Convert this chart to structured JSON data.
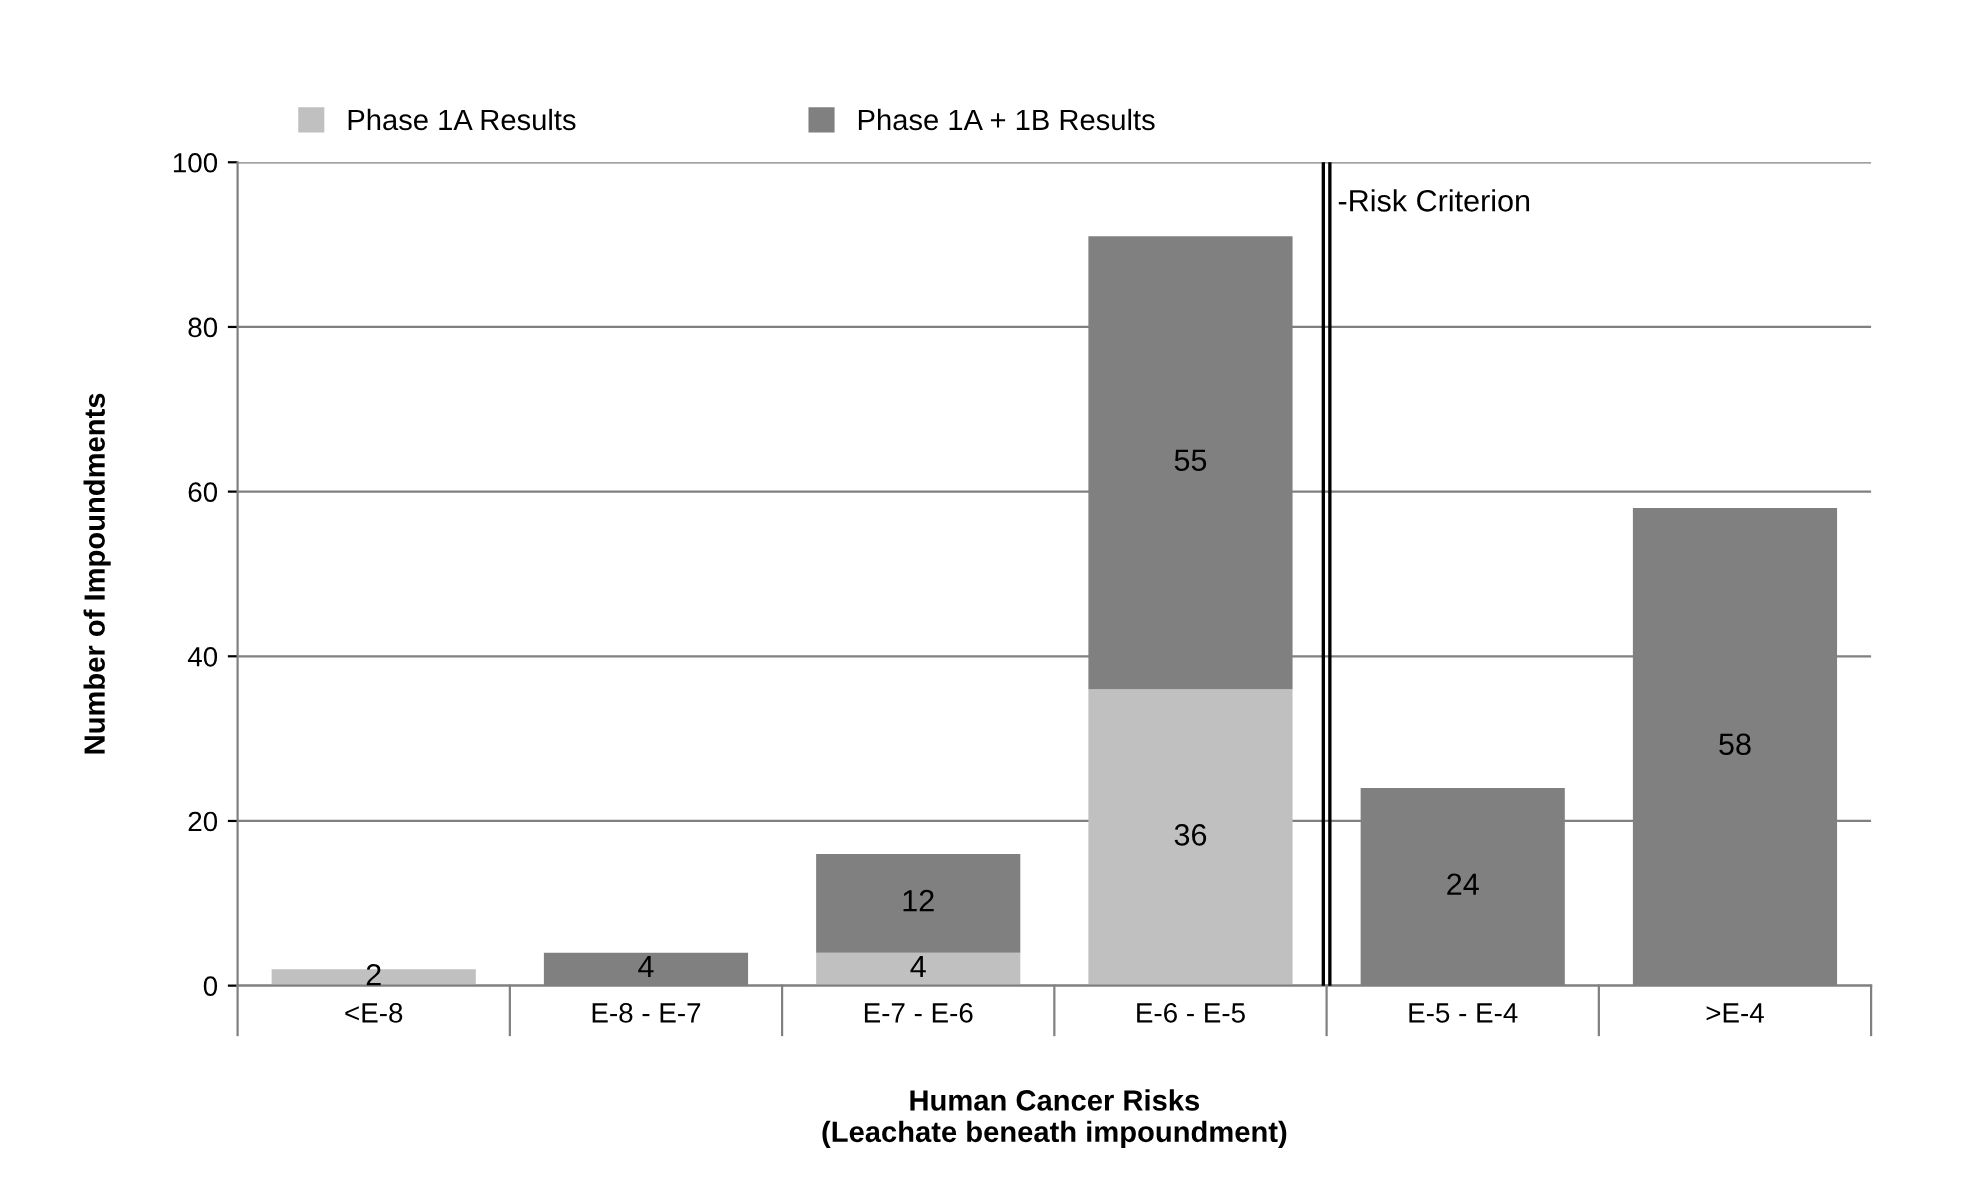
{
  "chart_data": {
    "type": "bar",
    "stacked": true,
    "xlabel": "Human Cancer Risks\n(Leachate beneath impoundment)",
    "ylabel": "Number of Impoundments",
    "categories": [
      "<E-8",
      "E-8 - E-7",
      "E-7 - E-6",
      "E-6 - E-5",
      "E-5 - E-4",
      ">E-4"
    ],
    "series": [
      {
        "name": "Phase 1A Results",
        "color": "#c0c0c0",
        "values": [
          2,
          null,
          4,
          36,
          null,
          null
        ],
        "value_labels": [
          "2",
          null,
          "4",
          "36",
          null,
          null
        ]
      },
      {
        "name": "Phase 1A + 1B Results",
        "color": "#808080",
        "values": [
          null,
          4,
          12,
          55,
          24,
          58
        ],
        "value_labels": [
          null,
          "4",
          "12",
          "55",
          "24",
          "58"
        ]
      }
    ],
    "ylim": [
      0,
      100
    ],
    "yticks": [
      0,
      20,
      40,
      60,
      80,
      100
    ],
    "grid": "y",
    "legend": "top",
    "annotations": [
      "-Risk Criterion"
    ]
  }
}
